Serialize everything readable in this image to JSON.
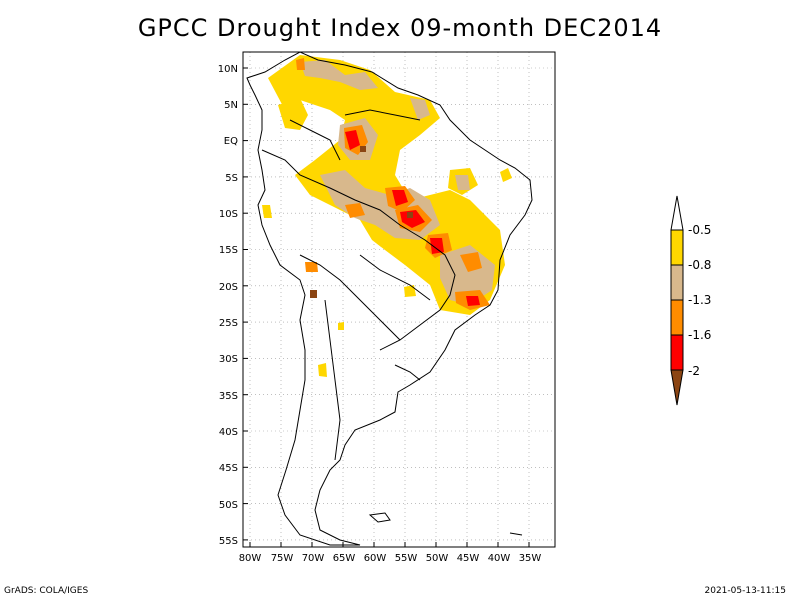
{
  "title": "GPCC Drought Index 09-month DEC2014",
  "lat_labels": [
    "10N",
    "5N",
    "EQ",
    "5S",
    "10S",
    "15S",
    "20S",
    "25S",
    "30S",
    "35S",
    "40S",
    "45S",
    "50S",
    "55S"
  ],
  "lon_labels": [
    "80W",
    "75W",
    "70W",
    "65W",
    "60W",
    "55W",
    "50W",
    "45W",
    "40W",
    "35W"
  ],
  "legend": {
    "labels": [
      "-0.5",
      "-0.8",
      "-1.3",
      "-1.6",
      "-2"
    ],
    "colors": [
      "#ffd700",
      "#d8b88c",
      "#ff8c00",
      "#ff0000",
      "#8b4513"
    ]
  },
  "footer": {
    "left": "GrADS: COLA/IGES",
    "right": "2021-05-13-11:15"
  }
}
